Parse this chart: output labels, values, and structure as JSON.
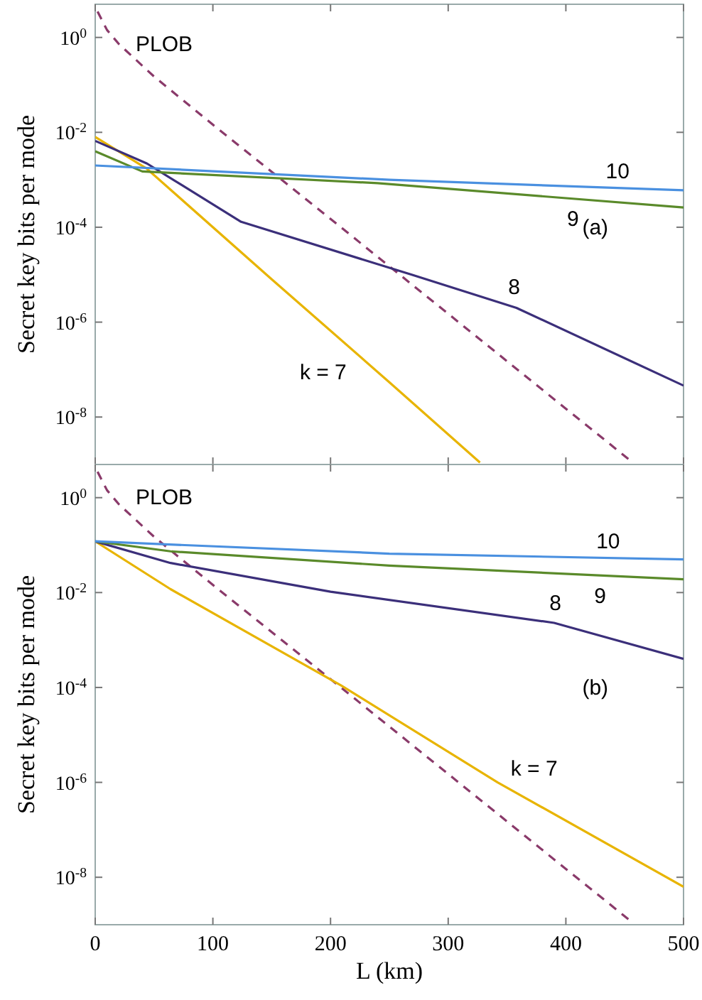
{
  "chart_data": [
    {
      "type": "line",
      "ylabel": "Secret key bits per mode",
      "log": "y",
      "grid": false,
      "tick_labels": "y",
      "xlim": [
        0,
        500
      ],
      "xticks": [
        0,
        100,
        200,
        300,
        400,
        500
      ],
      "ylim": [
        1e-09,
        5
      ],
      "yticks": [
        {
          "value": 1,
          "label": "10$^{0}$"
        },
        {
          "value": 0.01,
          "label": "10$^{-2}$"
        },
        {
          "value": 0.0001,
          "label": "10$^{-4}$"
        },
        {
          "value": 1e-06,
          "label": "10$^{-6}$"
        },
        {
          "value": 1e-08,
          "label": "10$^{-8}$"
        }
      ],
      "series": [
        {
          "name": "PLOB",
          "color": "#8a3a6a",
          "line_style": "dashed",
          "x": [
            2,
            10,
            20,
            50,
            100,
            200,
            300,
            400,
            455
          ],
          "values": [
            3.5,
            1.44,
            0.73,
            0.15,
            0.0145,
            0.00015,
            1.5e-06,
            1.5e-08,
            1.2e-09
          ]
        },
        {
          "name": "k = 7",
          "color": "#e8b400",
          "x": [
            0,
            44,
            150,
            250,
            327
          ],
          "values": [
            0.008,
            0.0017,
            8e-06,
            5.4e-08,
            1.1e-09
          ]
        },
        {
          "name": "8",
          "color": "#3b2f7a",
          "x": [
            0,
            44,
            124,
            269,
            358,
            500
          ],
          "values": [
            0.0066,
            0.0022,
            0.00013,
            1e-05,
            2e-06,
            4.6e-08
          ]
        },
        {
          "name": "9",
          "color": "#5a8a2a",
          "x": [
            0,
            40,
            240,
            500
          ],
          "values": [
            0.004,
            0.0015,
            0.00085,
            0.00026
          ]
        },
        {
          "name": "10",
          "color": "#4a90e0",
          "x": [
            0,
            250,
            500
          ],
          "values": [
            0.002,
            0.001,
            0.0006
          ]
        }
      ],
      "annotations": [
        "(a)"
      ]
    },
    {
      "type": "line",
      "xlabel": "L (km)",
      "ylabel": "Secret key bits per mode",
      "log": "y",
      "grid": false,
      "xlim": [
        0,
        500
      ],
      "xticks": [
        0,
        100,
        200,
        300,
        400,
        500
      ],
      "ylim": [
        1e-09,
        5
      ],
      "yticks": [
        {
          "value": 1,
          "label": "10$^{0}$"
        },
        {
          "value": 0.01,
          "label": "10$^{-2}$"
        },
        {
          "value": 0.0001,
          "label": "10$^{-4}$"
        },
        {
          "value": 1e-06,
          "label": "10$^{-6}$"
        },
        {
          "value": 1e-08,
          "label": "10$^{-8}$"
        }
      ],
      "series": [
        {
          "name": "PLOB",
          "color": "#8a3a6a",
          "line_style": "dashed",
          "x": [
            2,
            10,
            20,
            50,
            100,
            200,
            300,
            400,
            455
          ],
          "values": [
            3.5,
            1.44,
            0.73,
            0.15,
            0.0145,
            0.00015,
            1.5e-06,
            1.5e-08,
            1.2e-09
          ]
        },
        {
          "name": "k = 7",
          "color": "#e8b400",
          "x": [
            0,
            64,
            209,
            342,
            500
          ],
          "values": [
            0.12,
            0.0118,
            0.00011,
            1e-06,
            6.3e-09
          ]
        },
        {
          "name": "8",
          "color": "#3b2f7a",
          "x": [
            0,
            64,
            200,
            390,
            500
          ],
          "values": [
            0.12,
            0.042,
            0.0104,
            0.0023,
            0.0004
          ]
        },
        {
          "name": "9",
          "color": "#5a8a2a",
          "x": [
            0,
            64,
            250,
            500
          ],
          "values": [
            0.12,
            0.074,
            0.037,
            0.019
          ]
        },
        {
          "name": "10",
          "color": "#4a90e0",
          "x": [
            0,
            250,
            500
          ],
          "values": [
            0.12,
            0.066,
            0.05
          ]
        }
      ],
      "annotations": [
        "(b)"
      ]
    }
  ]
}
